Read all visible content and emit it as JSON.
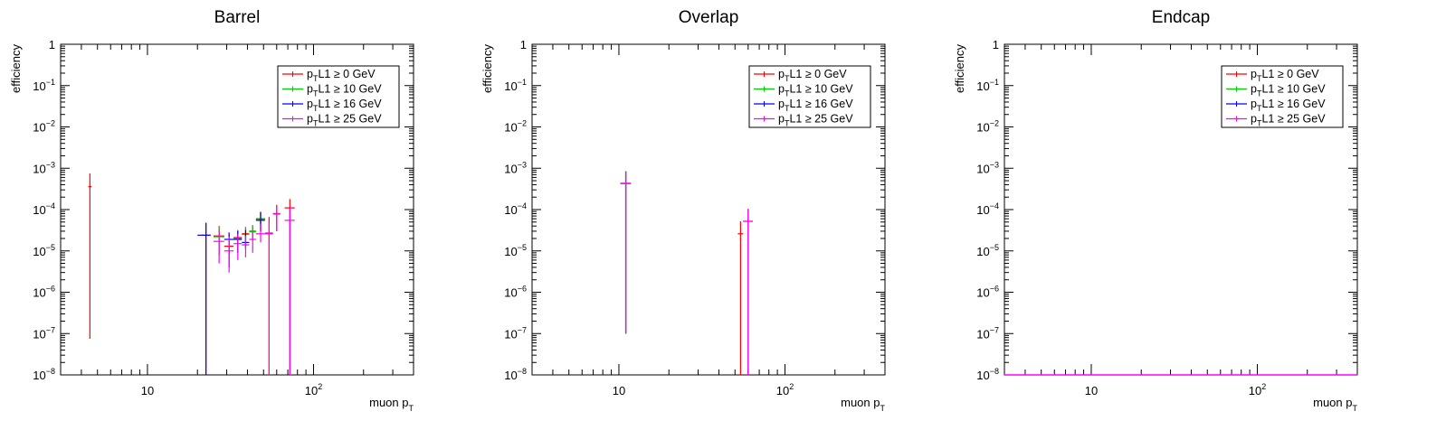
{
  "x_axis": {
    "scale": "log",
    "range": [
      3.0,
      400
    ],
    "major_ticks": [
      {
        "value": 10,
        "base": "10",
        "exp": ""
      },
      {
        "value": 100,
        "base": "10",
        "exp": "2"
      }
    ],
    "label": {
      "main": "muon p",
      "sub": "T"
    }
  },
  "y_axis": {
    "scale": "log",
    "range": [
      1e-08,
      1
    ],
    "label": "efficiency",
    "ticks": [
      {
        "value": 1,
        "base": "1",
        "exp": ""
      },
      {
        "value": 0.1,
        "base": "10",
        "exp": "−1"
      },
      {
        "value": 0.01,
        "base": "10",
        "exp": "−2"
      },
      {
        "value": 0.001,
        "base": "10",
        "exp": "−3"
      },
      {
        "value": 0.0001,
        "base": "10",
        "exp": "−4"
      },
      {
        "value": 1e-05,
        "base": "10",
        "exp": "−5"
      },
      {
        "value": 1e-06,
        "base": "10",
        "exp": "−6"
      },
      {
        "value": 1e-07,
        "base": "10",
        "exp": "−7"
      },
      {
        "value": 1e-08,
        "base": "10",
        "exp": "−8"
      }
    ]
  },
  "legend": {
    "placement": "top-right",
    "entries": [
      {
        "prefix": "p",
        "sub": "T",
        "rest": "L1 ≥ 0 GeV",
        "color": "#ff0000"
      },
      {
        "prefix": "p",
        "sub": "T",
        "rest": "L1 ≥ 10 GeV",
        "color": "#00cc00"
      },
      {
        "prefix": "p",
        "sub": "T",
        "rest": "L1 ≥ 16 GeV",
        "color": "#0000ff"
      },
      {
        "prefix": "p",
        "sub": "T",
        "rest": "L1 ≥ 25 GeV",
        "color": "#ff00ff"
      }
    ]
  },
  "chart_data": [
    {
      "type": "scatter",
      "title": "Barrel",
      "xlabel": "muon p_T",
      "ylabel": "efficiency",
      "xscale": "log",
      "yscale": "log",
      "xlim": [
        3.0,
        400
      ],
      "ylim": [
        1e-08,
        1
      ],
      "series": [
        {
          "name": "p_T L1 ≥ 0 GeV",
          "color": "#ff0000",
          "points": [
            {
              "x": 4.5,
              "xerr": [
                4.4,
                4.6
              ],
              "y": 0.00036,
              "ylo": 7.5e-08,
              "yhi": 0.00075
            },
            {
              "x": 22.5,
              "xerr": [
                21,
                24
              ],
              "y": 2.4e-05,
              "ylo": 1e-08,
              "yhi": 4.8e-05
            },
            {
              "x": 27,
              "xerr": [
                25,
                29
              ],
              "y": 2.3e-05,
              "ylo": 8e-06,
              "yhi": 4e-05
            },
            {
              "x": 31,
              "xerr": [
                29,
                33
              ],
              "y": 1.3e-05,
              "ylo": 4e-06,
              "yhi": 2.6e-05
            },
            {
              "x": 35,
              "xerr": [
                33,
                37
              ],
              "y": 2.1e-05,
              "ylo": 9e-06,
              "yhi": 3.2e-05
            },
            {
              "x": 39,
              "xerr": [
                37,
                41
              ],
              "y": 2.6e-05,
              "ylo": 1.2e-05,
              "yhi": 3.8e-05
            },
            {
              "x": 43,
              "xerr": [
                41,
                45
              ],
              "y": 3e-05,
              "ylo": 1.8e-05,
              "yhi": 4.2e-05
            },
            {
              "x": 48,
              "xerr": [
                45,
                51
              ],
              "y": 6e-05,
              "ylo": 3e-05,
              "yhi": 9e-05
            },
            {
              "x": 54,
              "xerr": [
                51,
                57
              ],
              "y": 2.7e-05,
              "ylo": 1e-08,
              "yhi": 6.6e-05
            },
            {
              "x": 60,
              "xerr": [
                57,
                63
              ],
              "y": 8e-05,
              "ylo": 3e-05,
              "yhi": 0.00013
            },
            {
              "x": 72,
              "xerr": [
                67,
                77
              ],
              "y": 0.00011,
              "ylo": 1e-08,
              "yhi": 0.00018
            }
          ]
        },
        {
          "name": "p_T L1 ≥ 10 GeV",
          "color": "#00cc00",
          "points": [
            {
              "x": 27,
              "xerr": [
                25,
                29
              ],
              "y": 2.2e-05,
              "ylo": 8e-06,
              "yhi": 3.8e-05
            },
            {
              "x": 35,
              "xerr": [
                33,
                37
              ],
              "y": 2e-05,
              "ylo": 9e-06,
              "yhi": 3.1e-05
            },
            {
              "x": 39,
              "xerr": [
                37,
                41
              ],
              "y": 2.5e-05,
              "ylo": 1.2e-05,
              "yhi": 3.7e-05
            },
            {
              "x": 43,
              "xerr": [
                41,
                45
              ],
              "y": 2.9e-05,
              "ylo": 1.8e-05,
              "yhi": 4.1e-05
            },
            {
              "x": 48,
              "xerr": [
                45,
                51
              ],
              "y": 5.8e-05,
              "ylo": 3e-05,
              "yhi": 8.8e-05
            }
          ]
        },
        {
          "name": "p_T L1 ≥ 16 GeV",
          "color": "#0000ff",
          "points": [
            {
              "x": 22.5,
              "xerr": [
                20,
                24
              ],
              "y": 2.4e-05,
              "ylo": 1e-08,
              "yhi": 4.8e-05
            },
            {
              "x": 31,
              "xerr": [
                29,
                33
              ],
              "y": 1.9e-05,
              "ylo": 4e-06,
              "yhi": 2.8e-05
            },
            {
              "x": 35,
              "xerr": [
                33,
                37
              ],
              "y": 1.9e-05,
              "ylo": 9e-06,
              "yhi": 3e-05
            },
            {
              "x": 39,
              "xerr": [
                37,
                41
              ],
              "y": 1.6e-05,
              "ylo": 1.1e-05,
              "yhi": 3.2e-05
            },
            {
              "x": 48,
              "xerr": [
                45,
                51
              ],
              "y": 5.5e-05,
              "ylo": 3e-05,
              "yhi": 8.5e-05
            }
          ]
        },
        {
          "name": "p_T L1 ≥ 25 GeV",
          "color": "#ff00ff",
          "points": [
            {
              "x": 27,
              "xerr": [
                25,
                29
              ],
              "y": 1.7e-05,
              "ylo": 5e-06,
              "yhi": 3.2e-05
            },
            {
              "x": 31,
              "xerr": [
                29,
                33
              ],
              "y": 1e-05,
              "ylo": 3e-06,
              "yhi": 2.2e-05
            },
            {
              "x": 35,
              "xerr": [
                33,
                37
              ],
              "y": 1.5e-05,
              "ylo": 6e-06,
              "yhi": 2.6e-05
            },
            {
              "x": 39,
              "xerr": [
                37,
                41
              ],
              "y": 1.4e-05,
              "ylo": 7e-06,
              "yhi": 2.3e-05
            },
            {
              "x": 43,
              "xerr": [
                41,
                45
              ],
              "y": 1.9e-05,
              "ylo": 9e-06,
              "yhi": 2.9e-05
            },
            {
              "x": 48,
              "xerr": [
                45,
                51
              ],
              "y": 2.6e-05,
              "ylo": 1.6e-05,
              "yhi": 4.4e-05
            },
            {
              "x": 54,
              "xerr": [
                51,
                57
              ],
              "y": 2.6e-05,
              "ylo": 1e-08,
              "yhi": 5.3e-05
            },
            {
              "x": 60,
              "xerr": [
                57,
                63
              ],
              "y": 7.8e-05,
              "ylo": 3e-05,
              "yhi": 0.000125
            },
            {
              "x": 72,
              "xerr": [
                67,
                77
              ],
              "y": 5.5e-05,
              "ylo": 1e-08,
              "yhi": 0.00011
            }
          ]
        }
      ]
    },
    {
      "type": "scatter",
      "title": "Overlap",
      "xlabel": "muon p_T",
      "ylabel": "efficiency",
      "xscale": "log",
      "yscale": "log",
      "xlim": [
        3.0,
        400
      ],
      "ylim": [
        1e-08,
        1
      ],
      "series": [
        {
          "name": "p_T L1 ≥ 0 GeV",
          "color": "#ff0000",
          "points": [
            {
              "x": 11,
              "xerr": [
                10.2,
                11.8
              ],
              "y": 0.00043,
              "ylo": 1e-07,
              "yhi": 0.00085
            },
            {
              "x": 54,
              "xerr": [
                52,
                56
              ],
              "y": 2.6e-05,
              "ylo": 1e-08,
              "yhi": 5.2e-05
            },
            {
              "x": 60,
              "xerr": [
                56,
                64
              ],
              "y": 5.2e-05,
              "ylo": 1e-08,
              "yhi": 0.000104
            }
          ]
        },
        {
          "name": "p_T L1 ≥ 10 GeV",
          "color": "#00cc00",
          "points": [
            {
              "x": 11,
              "xerr": [
                10.2,
                11.8
              ],
              "y": 0.00043,
              "ylo": 1e-07,
              "yhi": 0.00085
            }
          ]
        },
        {
          "name": "p_T L1 ≥ 16 GeV",
          "color": "#0000ff",
          "points": [
            {
              "x": 11,
              "xerr": [
                10.2,
                11.8
              ],
              "y": 0.00043,
              "ylo": 1e-07,
              "yhi": 0.00085
            }
          ]
        },
        {
          "name": "p_T L1 ≥ 25 GeV",
          "color": "#ff00ff",
          "points": [
            {
              "x": 11,
              "xerr": [
                10.2,
                11.8
              ],
              "y": 0.00043,
              "ylo": 1e-07,
              "yhi": 0.00085
            },
            {
              "x": 60,
              "xerr": [
                56,
                64
              ],
              "y": 5.2e-05,
              "ylo": 1e-08,
              "yhi": 0.000104
            }
          ]
        }
      ]
    },
    {
      "type": "scatter",
      "title": "Endcap",
      "xlabel": "muon p_T",
      "ylabel": "efficiency",
      "xscale": "log",
      "yscale": "log",
      "xlim": [
        3.0,
        400
      ],
      "ylim": [
        1e-08,
        1
      ],
      "series": [
        {
          "name": "p_T L1 ≥ 0 GeV",
          "color": "#ff0000",
          "points": []
        },
        {
          "name": "p_T L1 ≥ 10 GeV",
          "color": "#00cc00",
          "points": []
        },
        {
          "name": "p_T L1 ≥ 16 GeV",
          "color": "#0000ff",
          "points": []
        },
        {
          "name": "p_T L1 ≥ 25 GeV",
          "color": "#ff00ff",
          "points": []
        }
      ]
    }
  ]
}
